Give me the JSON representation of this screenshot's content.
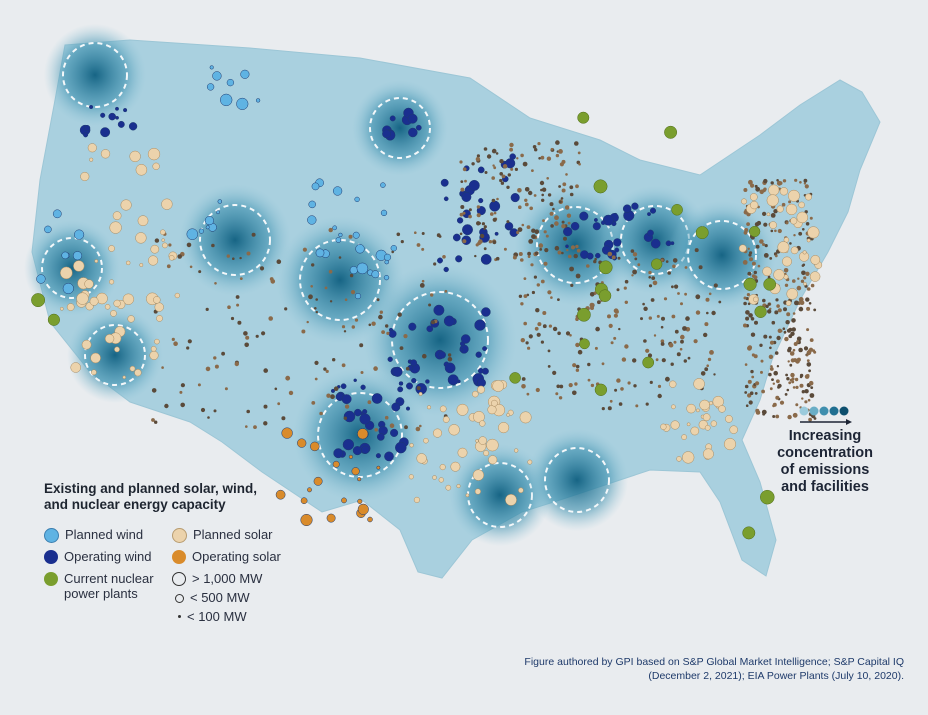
{
  "legend": {
    "title": "Existing and planned solar, wind, and nuclear energy capacity",
    "items": [
      {
        "label": "Planned wind",
        "color": "#5fb3e3"
      },
      {
        "label": "Operating wind",
        "color": "#1a2f8f"
      },
      {
        "label": "Current nuclear power plants",
        "color": "#7a9e2e"
      },
      {
        "label": "Planned solar",
        "color": "#ecd3ac"
      },
      {
        "label": "Operating solar",
        "color": "#d98b2b"
      }
    ],
    "sizes": [
      {
        "label": "> 1,000 MW"
      },
      {
        "label": "< 500 MW"
      },
      {
        "label": "< 100 MW"
      }
    ]
  },
  "gradient_key": {
    "label": "Increasing concentration of emissions and facilities",
    "colors": [
      "#9ccbdc",
      "#6aaec6",
      "#3f8fae",
      "#206f91",
      "#0d4f6e"
    ]
  },
  "credit": "Figure authored by GPI based on S&P Global Market Intelligence; S&P Capital IQ (December 2, 2021); EIA Power Plants (July 10, 2020)."
}
